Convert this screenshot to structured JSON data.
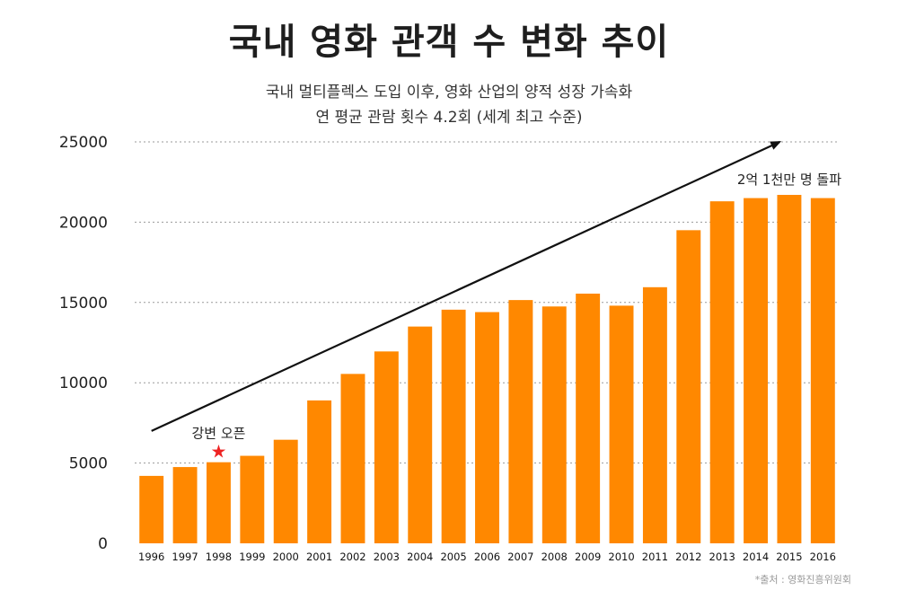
{
  "chart_data": {
    "type": "bar",
    "title": "국내 영화 관객 수 변화 추이",
    "subtitle_lines": [
      "국내 멀티플렉스 도입 이후, 영화 산업의 양적 성장 가속화",
      "연 평균 관람 횟수 4.2회 (세계 최고 수준)"
    ],
    "categories": [
      "1996",
      "1997",
      "1998",
      "1999",
      "2000",
      "2001",
      "2002",
      "2003",
      "2004",
      "2005",
      "2006",
      "2007",
      "2008",
      "2009",
      "2010",
      "2011",
      "2012",
      "2013",
      "2014",
      "2015",
      "2016"
    ],
    "values": [
      4200,
      4750,
      5050,
      5450,
      6450,
      8900,
      10550,
      11950,
      13500,
      14550,
      14400,
      15150,
      14750,
      15550,
      14800,
      15950,
      19500,
      21300,
      21500,
      21700,
      21500
    ],
    "yticks": [
      "0",
      "5000",
      "10000",
      "15000",
      "20000",
      "25000"
    ],
    "ylim": [
      0,
      25000
    ],
    "grid": "horizontal dotted",
    "bar_color": "#ff8800",
    "annotations": [
      {
        "text": "강변 오픈",
        "category": "1998",
        "marker": "star",
        "marker_color": "#ee2222"
      },
      {
        "text": "2억 1천만 명 돌파",
        "category": "2015"
      }
    ],
    "trend_arrow": {
      "from": {
        "category": "1996",
        "value": 7000
      },
      "to": {
        "category": "2016",
        "value": 25000
      }
    }
  },
  "source": "*출처 : 영화진흥위원회"
}
